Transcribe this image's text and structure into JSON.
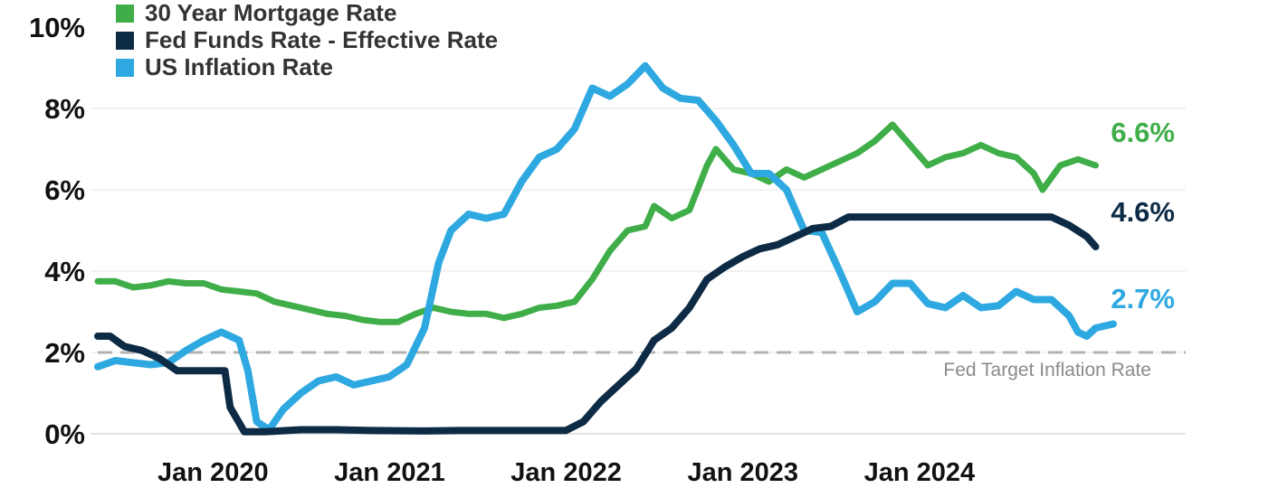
{
  "chart_data": {
    "type": "line",
    "title": "",
    "xlabel": "",
    "ylabel": "",
    "ylim": [
      0,
      10
    ],
    "xlim": [
      2019.45,
      2024.85
    ],
    "grid": "horizontal",
    "legend_position": "top-left",
    "y_ticks": [
      {
        "value": 0,
        "label": "0%"
      },
      {
        "value": 2,
        "label": "2%"
      },
      {
        "value": 4,
        "label": "4%"
      },
      {
        "value": 6,
        "label": "6%"
      },
      {
        "value": 8,
        "label": "8%"
      },
      {
        "value": 10,
        "label": "10%"
      }
    ],
    "x_ticks": [
      {
        "value": 2020.0,
        "label": "Jan 2020"
      },
      {
        "value": 2021.0,
        "label": "Jan 2021"
      },
      {
        "value": 2022.0,
        "label": "Jan 2022"
      },
      {
        "value": 2023.0,
        "label": "Jan 2023"
      },
      {
        "value": 2024.0,
        "label": "Jan 2024"
      }
    ],
    "reference_line": {
      "value": 2.0,
      "label": "Fed Target Inflation Rate",
      "color": "#b3b3b3"
    },
    "series": [
      {
        "name": "30 Year Mortgage Rate",
        "color": "#3fae49",
        "end_label": "6.6%",
        "points": [
          [
            2019.45,
            3.75
          ],
          [
            2019.55,
            3.75
          ],
          [
            2019.65,
            3.6
          ],
          [
            2019.75,
            3.65
          ],
          [
            2019.85,
            3.75
          ],
          [
            2019.95,
            3.7
          ],
          [
            2020.05,
            3.7
          ],
          [
            2020.15,
            3.55
          ],
          [
            2020.25,
            3.5
          ],
          [
            2020.35,
            3.45
          ],
          [
            2020.45,
            3.25
          ],
          [
            2020.55,
            3.15
          ],
          [
            2020.65,
            3.05
          ],
          [
            2020.75,
            2.95
          ],
          [
            2020.85,
            2.9
          ],
          [
            2020.95,
            2.8
          ],
          [
            2021.05,
            2.75
          ],
          [
            2021.15,
            2.75
          ],
          [
            2021.25,
            2.95
          ],
          [
            2021.35,
            3.1
          ],
          [
            2021.45,
            3.0
          ],
          [
            2021.55,
            2.95
          ],
          [
            2021.65,
            2.95
          ],
          [
            2021.75,
            2.85
          ],
          [
            2021.85,
            2.95
          ],
          [
            2021.95,
            3.1
          ],
          [
            2022.05,
            3.15
          ],
          [
            2022.15,
            3.25
          ],
          [
            2022.25,
            3.8
          ],
          [
            2022.35,
            4.5
          ],
          [
            2022.45,
            5.0
          ],
          [
            2022.55,
            5.1
          ],
          [
            2022.6,
            5.6
          ],
          [
            2022.7,
            5.3
          ],
          [
            2022.8,
            5.5
          ],
          [
            2022.9,
            6.6
          ],
          [
            2022.95,
            7.0
          ],
          [
            2023.05,
            6.5
          ],
          [
            2023.15,
            6.4
          ],
          [
            2023.25,
            6.2
          ],
          [
            2023.35,
            6.5
          ],
          [
            2023.45,
            6.3
          ],
          [
            2023.55,
            6.5
          ],
          [
            2023.65,
            6.7
          ],
          [
            2023.75,
            6.9
          ],
          [
            2023.85,
            7.2
          ],
          [
            2023.95,
            7.6
          ],
          [
            2024.05,
            7.1
          ],
          [
            2024.15,
            6.6
          ],
          [
            2024.25,
            6.8
          ],
          [
            2024.35,
            6.9
          ],
          [
            2024.45,
            7.1
          ],
          [
            2024.55,
            6.9
          ],
          [
            2024.65,
            6.8
          ],
          [
            2024.75,
            6.4
          ],
          [
            2024.8,
            6.0
          ],
          [
            2024.9,
            6.6
          ],
          [
            2025.0,
            6.75
          ],
          [
            2025.1,
            6.6
          ]
        ]
      },
      {
        "name": "Fed Funds Rate - Effective Rate",
        "color": "#0d2b45",
        "end_label": "4.6%",
        "points": [
          [
            2019.45,
            2.4
          ],
          [
            2019.52,
            2.4
          ],
          [
            2019.6,
            2.15
          ],
          [
            2019.7,
            2.05
          ],
          [
            2019.8,
            1.85
          ],
          [
            2019.9,
            1.55
          ],
          [
            2020.0,
            1.55
          ],
          [
            2020.1,
            1.55
          ],
          [
            2020.17,
            1.55
          ],
          [
            2020.2,
            0.65
          ],
          [
            2020.28,
            0.05
          ],
          [
            2020.4,
            0.05
          ],
          [
            2020.6,
            0.1
          ],
          [
            2020.8,
            0.1
          ],
          [
            2021.0,
            0.08
          ],
          [
            2021.3,
            0.07
          ],
          [
            2021.5,
            0.08
          ],
          [
            2021.7,
            0.08
          ],
          [
            2021.9,
            0.08
          ],
          [
            2022.0,
            0.08
          ],
          [
            2022.1,
            0.08
          ],
          [
            2022.2,
            0.3
          ],
          [
            2022.3,
            0.8
          ],
          [
            2022.4,
            1.2
          ],
          [
            2022.5,
            1.6
          ],
          [
            2022.6,
            2.3
          ],
          [
            2022.7,
            2.6
          ],
          [
            2022.8,
            3.1
          ],
          [
            2022.9,
            3.8
          ],
          [
            2023.0,
            4.1
          ],
          [
            2023.1,
            4.35
          ],
          [
            2023.2,
            4.55
          ],
          [
            2023.3,
            4.65
          ],
          [
            2023.4,
            4.85
          ],
          [
            2023.5,
            5.05
          ],
          [
            2023.6,
            5.1
          ],
          [
            2023.7,
            5.33
          ],
          [
            2023.9,
            5.33
          ],
          [
            2024.1,
            5.33
          ],
          [
            2024.3,
            5.33
          ],
          [
            2024.5,
            5.33
          ],
          [
            2024.7,
            5.33
          ],
          [
            2024.85,
            5.33
          ],
          [
            2024.95,
            5.13
          ],
          [
            2025.05,
            4.85
          ],
          [
            2025.1,
            4.6
          ]
        ]
      },
      {
        "name": "US Inflation Rate",
        "color": "#2ea8e0",
        "end_label": "2.7%",
        "points": [
          [
            2019.45,
            1.65
          ],
          [
            2019.55,
            1.8
          ],
          [
            2019.65,
            1.75
          ],
          [
            2019.75,
            1.7
          ],
          [
            2019.85,
            1.75
          ],
          [
            2019.95,
            2.05
          ],
          [
            2020.05,
            2.3
          ],
          [
            2020.15,
            2.5
          ],
          [
            2020.25,
            2.3
          ],
          [
            2020.3,
            1.55
          ],
          [
            2020.35,
            0.3
          ],
          [
            2020.42,
            0.1
          ],
          [
            2020.5,
            0.6
          ],
          [
            2020.6,
            1.0
          ],
          [
            2020.7,
            1.3
          ],
          [
            2020.8,
            1.4
          ],
          [
            2020.9,
            1.2
          ],
          [
            2021.0,
            1.3
          ],
          [
            2021.1,
            1.4
          ],
          [
            2021.2,
            1.7
          ],
          [
            2021.3,
            2.6
          ],
          [
            2021.38,
            4.2
          ],
          [
            2021.45,
            5.0
          ],
          [
            2021.55,
            5.4
          ],
          [
            2021.65,
            5.3
          ],
          [
            2021.75,
            5.4
          ],
          [
            2021.85,
            6.2
          ],
          [
            2021.95,
            6.8
          ],
          [
            2022.05,
            7.0
          ],
          [
            2022.15,
            7.5
          ],
          [
            2022.25,
            8.5
          ],
          [
            2022.35,
            8.3
          ],
          [
            2022.45,
            8.6
          ],
          [
            2022.55,
            9.05
          ],
          [
            2022.65,
            8.5
          ],
          [
            2022.75,
            8.25
          ],
          [
            2022.85,
            8.2
          ],
          [
            2022.95,
            7.7
          ],
          [
            2023.05,
            7.1
          ],
          [
            2023.15,
            6.4
          ],
          [
            2023.25,
            6.4
          ],
          [
            2023.35,
            6.0
          ],
          [
            2023.45,
            5.0
          ],
          [
            2023.55,
            4.95
          ],
          [
            2023.65,
            4.0
          ],
          [
            2023.75,
            3.0
          ],
          [
            2023.85,
            3.25
          ],
          [
            2023.95,
            3.7
          ],
          [
            2024.05,
            3.7
          ],
          [
            2024.15,
            3.2
          ],
          [
            2024.25,
            3.1
          ],
          [
            2024.35,
            3.4
          ],
          [
            2024.45,
            3.1
          ],
          [
            2024.55,
            3.15
          ],
          [
            2024.65,
            3.5
          ],
          [
            2024.75,
            3.3
          ],
          [
            2024.85,
            3.3
          ],
          [
            2024.95,
            2.9
          ],
          [
            2025.0,
            2.5
          ],
          [
            2025.05,
            2.4
          ],
          [
            2025.1,
            2.6
          ],
          [
            2025.2,
            2.7
          ]
        ]
      }
    ]
  }
}
